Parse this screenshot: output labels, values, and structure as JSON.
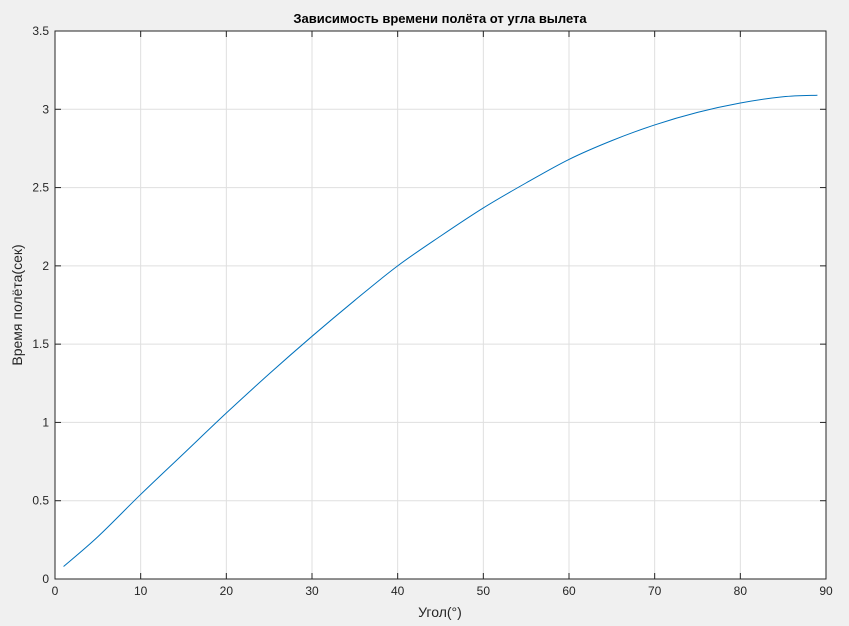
{
  "chart_data": {
    "type": "line",
    "title": "Зависимость времени полёта от угла вылета",
    "xlabel": "Угол(°)",
    "ylabel": "Время полёта(сек)",
    "xlim": [
      0,
      90
    ],
    "ylim": [
      0,
      3.5
    ],
    "xticks": [
      "0",
      "10",
      "20",
      "30",
      "40",
      "50",
      "60",
      "70",
      "80",
      "90"
    ],
    "yticks": [
      "0",
      "0.5",
      "1",
      "1.5",
      "2",
      "2.5",
      "3",
      "3.5"
    ],
    "grid": true,
    "series": [
      {
        "color": "#0072bd",
        "x": [
          1,
          5,
          10,
          15,
          20,
          25,
          30,
          35,
          40,
          45,
          50,
          55,
          60,
          65,
          70,
          75,
          80,
          85,
          89
        ],
        "y": [
          0.08,
          0.27,
          0.54,
          0.8,
          1.06,
          1.31,
          1.55,
          1.78,
          2.0,
          2.19,
          2.37,
          2.53,
          2.68,
          2.8,
          2.9,
          2.98,
          3.04,
          3.08,
          3.09
        ]
      }
    ]
  }
}
